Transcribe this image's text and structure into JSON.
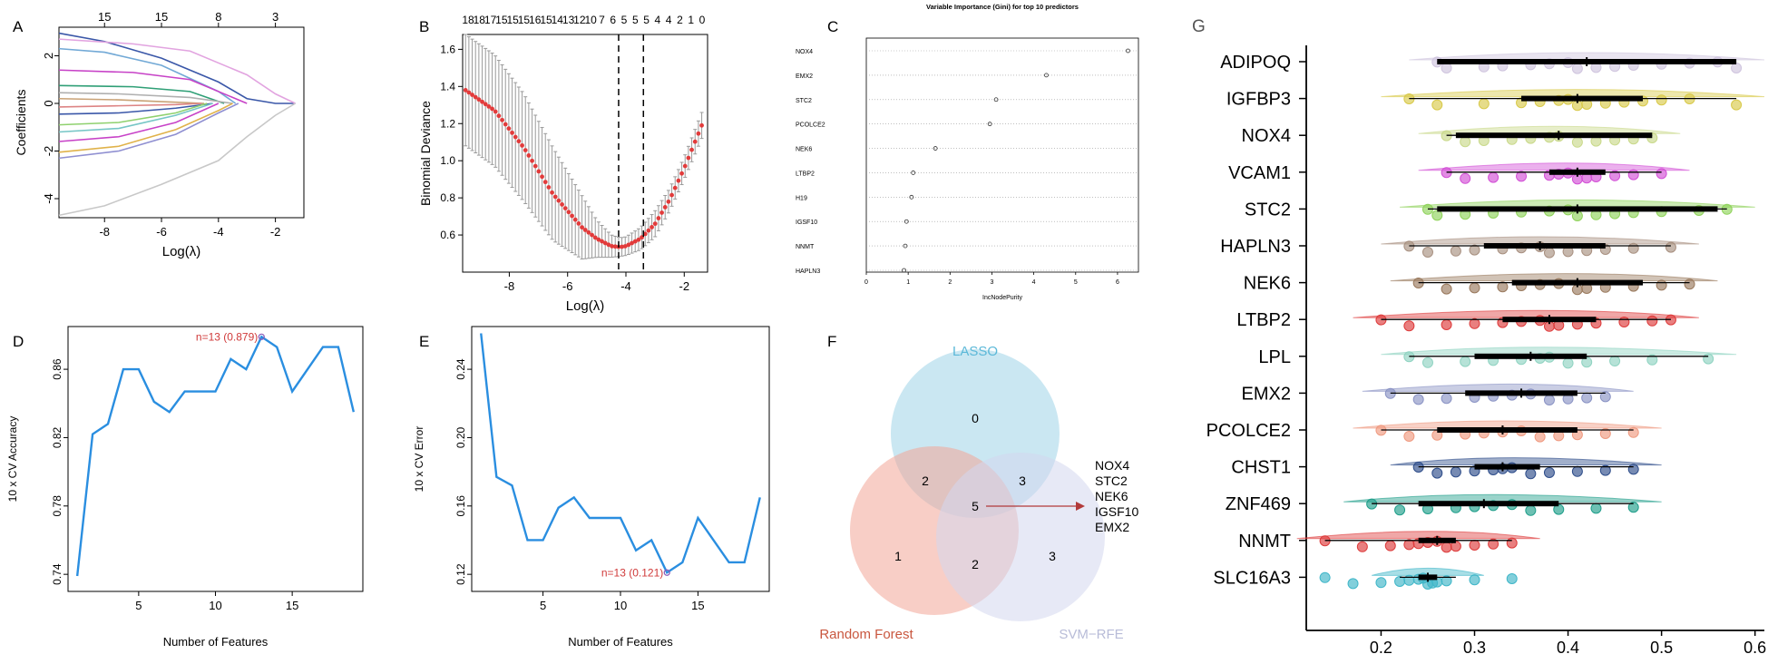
{
  "chart_data": [
    {
      "panel": "A",
      "type": "line",
      "xlabel": "Log(λ)",
      "ylabel": "Coefficients",
      "xlim": [
        -9.6,
        -1.0
      ],
      "ylim": [
        -4.8,
        3.2
      ],
      "xticks": [
        -8,
        -6,
        -4,
        -2
      ],
      "yticks": [
        -4,
        -2,
        0,
        2
      ],
      "top_axis": {
        "positions": [
          -8,
          -6,
          -4,
          -2
        ],
        "labels": [
          "15",
          "15",
          "8",
          "3"
        ]
      },
      "series": [
        {
          "color": "#3a57a8",
          "x": [
            -9.6,
            -8.0,
            -6.0,
            -4.0,
            -3.0,
            -2.0,
            -1.3
          ],
          "y": [
            2.95,
            2.6,
            1.9,
            0.9,
            0.2,
            0.0,
            0.0
          ]
        },
        {
          "color": "#e2a4e0",
          "x": [
            -9.6,
            -7.0,
            -5.0,
            -3.0,
            -2.0,
            -1.3
          ],
          "y": [
            2.7,
            2.5,
            2.2,
            1.2,
            0.4,
            0.0
          ]
        },
        {
          "color": "#72a9d6",
          "x": [
            -9.6,
            -8.0,
            -6.0,
            -4.0,
            -3.4
          ],
          "y": [
            2.3,
            2.15,
            1.6,
            0.5,
            0.0
          ]
        },
        {
          "color": "#c742c7",
          "x": [
            -9.6,
            -7.0,
            -5.0,
            -3.0
          ],
          "y": [
            1.4,
            1.3,
            1.0,
            0.0
          ]
        },
        {
          "color": "#2f9f76",
          "x": [
            -9.6,
            -7.0,
            -5.0,
            -3.8
          ],
          "y": [
            0.75,
            0.7,
            0.5,
            0.0
          ]
        },
        {
          "color": "#b0b0b0",
          "x": [
            -9.6,
            -7.5,
            -5.0,
            -3.5
          ],
          "y": [
            0.45,
            0.4,
            0.25,
            0.0
          ]
        },
        {
          "color": "#c9a276",
          "x": [
            -9.6,
            -7.5,
            -5.5,
            -4.5
          ],
          "y": [
            0.2,
            0.15,
            0.05,
            0.0
          ]
        },
        {
          "color": "#dd8484",
          "x": [
            -9.6,
            -7.5,
            -5.5,
            -4.6
          ],
          "y": [
            -0.15,
            -0.1,
            -0.05,
            0.0
          ]
        },
        {
          "color": "#3a57a8",
          "x": [
            -9.6,
            -7.5,
            -5.5,
            -4.2
          ],
          "y": [
            -0.45,
            -0.4,
            -0.2,
            0.0
          ]
        },
        {
          "color": "#8fd16e",
          "x": [
            -9.6,
            -7.5,
            -5.5,
            -4.4
          ],
          "y": [
            -0.9,
            -0.8,
            -0.4,
            0.0
          ]
        },
        {
          "color": "#76c6c6",
          "x": [
            -9.6,
            -7.5,
            -5.5,
            -4.2
          ],
          "y": [
            -1.2,
            -1.05,
            -0.5,
            0.0
          ]
        },
        {
          "color": "#c742c7",
          "x": [
            -9.6,
            -7.5,
            -5.5,
            -4.0
          ],
          "y": [
            -1.6,
            -1.4,
            -0.8,
            0.0
          ]
        },
        {
          "color": "#e0b24a",
          "x": [
            -9.6,
            -7.5,
            -5.5,
            -4.0,
            -3.5
          ],
          "y": [
            -2.05,
            -1.8,
            -1.1,
            -0.3,
            0.0
          ]
        },
        {
          "color": "#8f8fd1",
          "x": [
            -9.6,
            -7.5,
            -5.5,
            -4.0,
            -3.3
          ],
          "y": [
            -2.3,
            -2.0,
            -1.3,
            -0.4,
            0.0
          ]
        },
        {
          "color": "#c8c8c8",
          "x": [
            -9.6,
            -8.0,
            -6.0,
            -4.0,
            -3.0,
            -2.0,
            -1.3
          ],
          "y": [
            -4.7,
            -4.3,
            -3.4,
            -2.4,
            -1.4,
            -0.5,
            0.0
          ]
        }
      ]
    },
    {
      "panel": "B",
      "type": "line",
      "xlabel": "Log(λ)",
      "ylabel": "Binomial Deviance",
      "xlim": [
        -9.6,
        -1.2
      ],
      "ylim": [
        0.4,
        1.68
      ],
      "xticks": [
        -8,
        -6,
        -4,
        -2
      ],
      "yticks": [
        0.6,
        0.8,
        1.0,
        1.2,
        1.4,
        1.6
      ],
      "top_axis": {
        "labels": [
          "18",
          "18",
          "17",
          "15",
          "15",
          "15",
          "16",
          "15",
          "14",
          "13",
          "12",
          "10",
          "7",
          "6",
          "5",
          "5",
          "5",
          "4",
          "4",
          "2",
          "1",
          "0"
        ]
      },
      "vlines": [
        -4.25,
        -3.4
      ],
      "curve_x": [
        -9.5,
        -8.5,
        -7.5,
        -6.5,
        -5.5,
        -5.0,
        -4.5,
        -4.2,
        -4.0,
        -3.5,
        -3.0,
        -2.5,
        -2.0,
        -1.4
      ],
      "curve_y": [
        1.38,
        1.27,
        1.07,
        0.82,
        0.64,
        0.58,
        0.54,
        0.535,
        0.54,
        0.58,
        0.66,
        0.79,
        0.96,
        1.19
      ],
      "error_half_width": [
        0.3,
        0.3,
        0.29,
        0.25,
        0.17,
        0.1,
        0.06,
        0.05,
        0.05,
        0.06,
        0.07,
        0.06,
        0.06,
        0.07
      ]
    },
    {
      "panel": "C",
      "type": "scatter",
      "title": "Variable Importance (Gini) for top 10 predictors",
      "xlabel": "IncNodePurity",
      "xlim": [
        0,
        6.5
      ],
      "xticks": [
        0,
        1,
        2,
        3,
        4,
        5,
        6
      ],
      "categories": [
        "NOX4",
        "EMX2",
        "STC2",
        "PCOLCE2",
        "NEK6",
        "LTBP2",
        "H19",
        "IGSF10",
        "NNMT",
        "HAPLN3"
      ],
      "values": [
        6.25,
        4.3,
        3.1,
        2.95,
        1.65,
        1.12,
        1.08,
        0.96,
        0.93,
        0.9
      ]
    },
    {
      "panel": "D",
      "type": "line",
      "xlabel": "Number of Features",
      "ylabel": "10 x CV Accuracy",
      "xlim": [
        0.4,
        19.6
      ],
      "ylim": [
        0.73,
        0.885
      ],
      "xticks": [
        5,
        10,
        15
      ],
      "yticks": [
        0.74,
        0.78,
        0.82,
        0.86
      ],
      "x": [
        1,
        2,
        3,
        4,
        5,
        6,
        7,
        8,
        9,
        10,
        11,
        12,
        13,
        14,
        15,
        16,
        17,
        18,
        19
      ],
      "y": [
        0.739,
        0.822,
        0.828,
        0.86,
        0.86,
        0.841,
        0.835,
        0.847,
        0.847,
        0.847,
        0.866,
        0.86,
        0.879,
        0.873,
        0.847,
        0.86,
        0.873,
        0.873,
        0.835
      ],
      "highlight": {
        "x": 13,
        "y": 0.879,
        "label": "n=13 (0.879)"
      }
    },
    {
      "panel": "E",
      "type": "line",
      "xlabel": "Number of Features",
      "ylabel": "10 x CV Error",
      "xlim": [
        0.4,
        19.6
      ],
      "ylim": [
        0.11,
        0.265
      ],
      "xticks": [
        5,
        10,
        15
      ],
      "yticks": [
        0.12,
        0.16,
        0.2,
        0.24
      ],
      "x": [
        1,
        2,
        3,
        4,
        5,
        6,
        7,
        8,
        9,
        10,
        11,
        12,
        13,
        14,
        15,
        16,
        17,
        18,
        19
      ],
      "y": [
        0.261,
        0.177,
        0.172,
        0.14,
        0.14,
        0.159,
        0.165,
        0.153,
        0.153,
        0.153,
        0.134,
        0.14,
        0.121,
        0.127,
        0.153,
        0.14,
        0.127,
        0.127,
        0.165
      ],
      "highlight": {
        "x": 13,
        "y": 0.121,
        "label": "n=13 (0.121)"
      }
    },
    {
      "panel": "F",
      "type": "venn",
      "sets": [
        {
          "name": "LASSO",
          "color": "#9ed3e8"
        },
        {
          "name": "Random Forest",
          "color": "#f2a597"
        },
        {
          "name": "SVM−RFE",
          "color": "#d3d7ee"
        }
      ],
      "regions": [
        {
          "sets": [
            "LASSO"
          ],
          "count": "0"
        },
        {
          "sets": [
            "LASSO",
            "Random Forest"
          ],
          "count": "2"
        },
        {
          "sets": [
            "LASSO",
            "SVM−RFE"
          ],
          "count": "3"
        },
        {
          "sets": [
            "LASSO",
            "Random Forest",
            "SVM−RFE"
          ],
          "count": "5"
        },
        {
          "sets": [
            "Random Forest"
          ],
          "count": "1"
        },
        {
          "sets": [
            "Random Forest",
            "SVM−RFE"
          ],
          "count": "2"
        },
        {
          "sets": [
            "SVM−RFE"
          ],
          "count": "3"
        }
      ],
      "common_genes": [
        "NOX4",
        "STC2",
        "NEK6",
        "IGSF10",
        "EMX2"
      ]
    },
    {
      "panel": "G",
      "type": "raincloud",
      "xlim": [
        0.12,
        0.61
      ],
      "xticks": [
        0.2,
        0.3,
        0.4,
        0.5,
        0.6
      ],
      "rows": [
        {
          "gene": "ADIPOQ",
          "color": "#cfc4de",
          "q1": 0.26,
          "q3": 0.58,
          "median": 0.42,
          "min": 0.26,
          "max": 0.58,
          "points": [
            0.26,
            0.27,
            0.31,
            0.33,
            0.36,
            0.38,
            0.4,
            0.41,
            0.43,
            0.45,
            0.47,
            0.5,
            0.53,
            0.56,
            0.58
          ]
        },
        {
          "gene": "IGFBP3",
          "color": "#d8c94a",
          "q1": 0.35,
          "q3": 0.48,
          "median": 0.41,
          "min": 0.23,
          "max": 0.58,
          "points": [
            0.23,
            0.26,
            0.31,
            0.35,
            0.37,
            0.39,
            0.4,
            0.41,
            0.42,
            0.44,
            0.46,
            0.48,
            0.5,
            0.53,
            0.58
          ]
        },
        {
          "gene": "NOX4",
          "color": "#c9d98a",
          "q1": 0.28,
          "q3": 0.49,
          "median": 0.39,
          "min": 0.27,
          "max": 0.49,
          "points": [
            0.27,
            0.29,
            0.31,
            0.34,
            0.36,
            0.38,
            0.39,
            0.41,
            0.43,
            0.45,
            0.47,
            0.49
          ]
        },
        {
          "gene": "VCAM1",
          "color": "#d24fd6",
          "q1": 0.38,
          "q3": 0.44,
          "median": 0.41,
          "min": 0.27,
          "max": 0.5,
          "points": [
            0.27,
            0.29,
            0.32,
            0.35,
            0.38,
            0.39,
            0.4,
            0.41,
            0.42,
            0.43,
            0.45,
            0.47,
            0.5
          ]
        },
        {
          "gene": "STC2",
          "color": "#8fd25a",
          "q1": 0.26,
          "q3": 0.56,
          "median": 0.41,
          "min": 0.25,
          "max": 0.57,
          "points": [
            0.25,
            0.26,
            0.29,
            0.32,
            0.35,
            0.38,
            0.4,
            0.41,
            0.43,
            0.45,
            0.47,
            0.5,
            0.54,
            0.57
          ]
        },
        {
          "gene": "HAPLN3",
          "color": "#a89080",
          "q1": 0.31,
          "q3": 0.44,
          "median": 0.37,
          "min": 0.23,
          "max": 0.51,
          "points": [
            0.23,
            0.25,
            0.28,
            0.3,
            0.33,
            0.35,
            0.37,
            0.38,
            0.4,
            0.42,
            0.44,
            0.47,
            0.51
          ]
        },
        {
          "gene": "NEK6",
          "color": "#9a7a5e",
          "q1": 0.34,
          "q3": 0.48,
          "median": 0.41,
          "min": 0.24,
          "max": 0.53,
          "points": [
            0.24,
            0.27,
            0.3,
            0.33,
            0.35,
            0.37,
            0.39,
            0.41,
            0.42,
            0.44,
            0.47,
            0.5,
            0.53
          ]
        },
        {
          "gene": "LTBP2",
          "color": "#dd3b3b",
          "q1": 0.33,
          "q3": 0.43,
          "median": 0.38,
          "min": 0.2,
          "max": 0.51,
          "points": [
            0.2,
            0.23,
            0.27,
            0.3,
            0.33,
            0.35,
            0.37,
            0.38,
            0.39,
            0.41,
            0.43,
            0.46,
            0.49,
            0.51
          ]
        },
        {
          "gene": "LPL",
          "color": "#8fd3c1",
          "q1": 0.3,
          "q3": 0.42,
          "median": 0.36,
          "min": 0.23,
          "max": 0.55,
          "points": [
            0.23,
            0.25,
            0.29,
            0.32,
            0.35,
            0.37,
            0.38,
            0.4,
            0.42,
            0.45,
            0.49,
            0.55
          ]
        },
        {
          "gene": "EMX2",
          "color": "#8a93c4",
          "q1": 0.29,
          "q3": 0.41,
          "median": 0.35,
          "min": 0.21,
          "max": 0.44,
          "points": [
            0.21,
            0.24,
            0.27,
            0.3,
            0.32,
            0.34,
            0.36,
            0.38,
            0.4,
            0.42,
            0.44
          ]
        },
        {
          "gene": "PCOLCE2",
          "color": "#ef9a80",
          "q1": 0.26,
          "q3": 0.41,
          "median": 0.33,
          "min": 0.2,
          "max": 0.47,
          "points": [
            0.2,
            0.23,
            0.26,
            0.29,
            0.31,
            0.33,
            0.35,
            0.37,
            0.39,
            0.41,
            0.44,
            0.47
          ]
        },
        {
          "gene": "CHST1",
          "color": "#2e4d8a",
          "q1": 0.3,
          "q3": 0.37,
          "median": 0.33,
          "min": 0.24,
          "max": 0.47,
          "points": [
            0.24,
            0.26,
            0.28,
            0.3,
            0.32,
            0.33,
            0.34,
            0.36,
            0.38,
            0.41,
            0.44,
            0.47
          ]
        },
        {
          "gene": "ZNF469",
          "color": "#1f9e8a",
          "q1": 0.24,
          "q3": 0.39,
          "median": 0.31,
          "min": 0.19,
          "max": 0.47,
          "points": [
            0.19,
            0.22,
            0.25,
            0.28,
            0.3,
            0.32,
            0.34,
            0.36,
            0.39,
            0.43,
            0.47
          ]
        },
        {
          "gene": "NNMT",
          "color": "#dd3b3b",
          "q1": 0.24,
          "q3": 0.28,
          "median": 0.26,
          "min": 0.14,
          "max": 0.34,
          "points": [
            0.14,
            0.18,
            0.21,
            0.23,
            0.24,
            0.25,
            0.26,
            0.27,
            0.28,
            0.3,
            0.32,
            0.34
          ]
        },
        {
          "gene": "SLC16A3",
          "color": "#3fb6c8",
          "q1": 0.24,
          "q3": 0.26,
          "median": 0.25,
          "min": 0.22,
          "max": 0.28,
          "points": [
            0.14,
            0.17,
            0.2,
            0.22,
            0.23,
            0.24,
            0.245,
            0.25,
            0.255,
            0.26,
            0.27,
            0.3,
            0.34
          ]
        }
      ]
    }
  ],
  "panel_labels": {
    "A": "A",
    "B": "B",
    "C": "C",
    "D": "D",
    "E": "E",
    "F": "F",
    "G": "G"
  }
}
